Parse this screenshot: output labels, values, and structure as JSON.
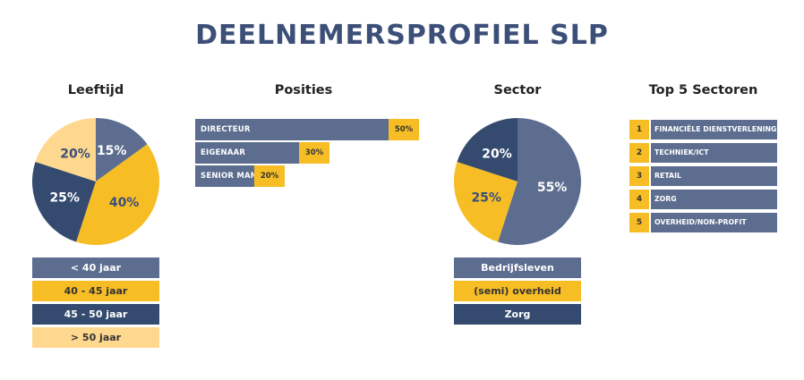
{
  "title": "DEELNEMERSPROFIEL SLP",
  "colors": {
    "slate": "#5c6d8f",
    "yellow": "#f6bd25",
    "navy": "#344a6f",
    "light_yellow": "#fdd88e"
  },
  "sections": {
    "leeftijd": "Leeftijd",
    "posities": "Posities",
    "sector": "Sector",
    "top5": "Top 5 Sectoren"
  },
  "chart_data": [
    {
      "type": "pie",
      "title": "Leeftijd",
      "categories": [
        "< 40 jaar",
        "40 - 45 jaar",
        "45 - 50 jaar",
        "> 50 jaar"
      ],
      "values": [
        15,
        40,
        25,
        20
      ],
      "labels": [
        "15%",
        "40%",
        "25%",
        "20%"
      ],
      "colors": [
        "#5c6d8f",
        "#f6bd25",
        "#344a6f",
        "#fdd88e"
      ],
      "label_colors": [
        "#ffffff",
        "#3c4f78",
        "#ffffff",
        "#3c4f78"
      ],
      "legend_text_colors": [
        "#ffffff",
        "#333333",
        "#ffffff",
        "#333333"
      ]
    },
    {
      "type": "bar",
      "title": "Posities",
      "orientation": "horizontal",
      "categories": [
        "DIRECTEUR",
        "EIGENAAR",
        "SENIOR MANAGER"
      ],
      "values": [
        50,
        30,
        20
      ],
      "labels": [
        "50%",
        "30%",
        "20%"
      ]
    },
    {
      "type": "pie",
      "title": "Sector",
      "categories": [
        "Bedrijfsleven",
        "(semi) overheid",
        "Zorg"
      ],
      "values": [
        55,
        25,
        20
      ],
      "labels": [
        "55%",
        "25%",
        "20%"
      ],
      "colors": [
        "#5c6d8f",
        "#f6bd25",
        "#344a6f"
      ],
      "label_colors": [
        "#ffffff",
        "#3c4f78",
        "#ffffff"
      ],
      "legend_text_colors": [
        "#ffffff",
        "#333333",
        "#ffffff"
      ]
    }
  ],
  "top5": [
    {
      "rank": "1",
      "label": "FINANCIËLE DIENSTVERLENING"
    },
    {
      "rank": "2",
      "label": "TECHNIEK/ICT"
    },
    {
      "rank": "3",
      "label": "RETAIL"
    },
    {
      "rank": "4",
      "label": "ZORG"
    },
    {
      "rank": "5",
      "label": "OVERHEID/NON-PROFIT"
    }
  ]
}
